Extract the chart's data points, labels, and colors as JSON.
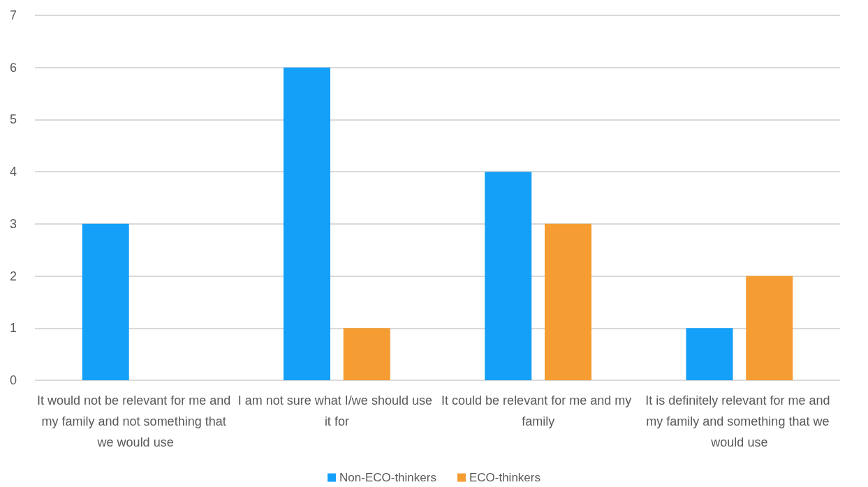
{
  "chart_data": {
    "type": "bar",
    "categories": [
      "It would not be relevant for me and my family and not something that we would use",
      "I am not sure what I/we should use it for",
      "It could be relevant for me and my family",
      "It is definitely relevant for me and my family and something that we would use"
    ],
    "series": [
      {
        "name": "Non-ECO-thinkers",
        "color": "#14a0f8",
        "values": [
          3,
          6,
          4,
          1
        ]
      },
      {
        "name": "ECO-thinkers",
        "color": "#f59c32",
        "values": [
          0,
          1,
          3,
          2
        ]
      }
    ],
    "ylim": [
      0,
      7
    ],
    "yticks": [
      0,
      1,
      2,
      3,
      4,
      5,
      6,
      7
    ],
    "grid": "y",
    "legend": "bottom"
  }
}
